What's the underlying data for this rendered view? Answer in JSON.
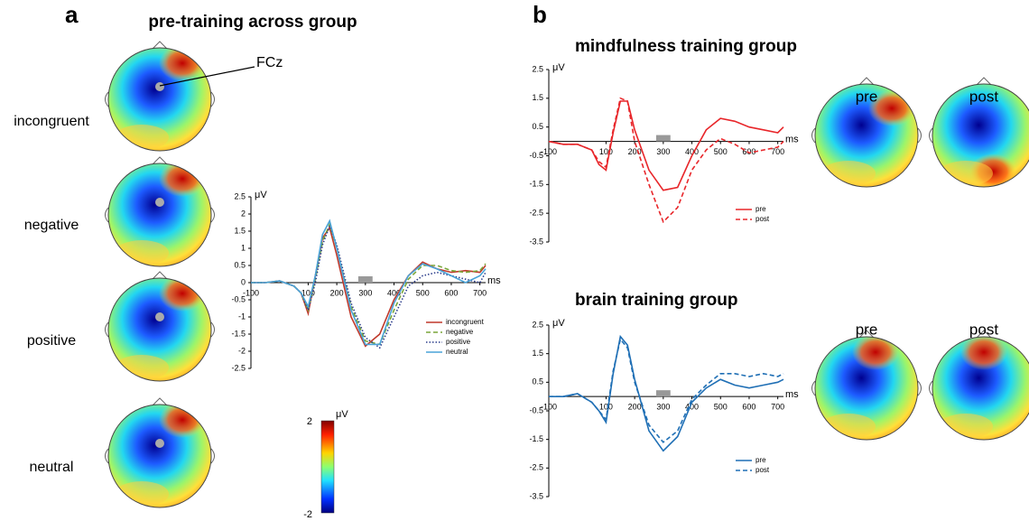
{
  "panel_labels": [
    "a",
    "b"
  ],
  "panel_a": {
    "title": "pre-training across group",
    "rows": [
      "incongruent",
      "negative",
      "positive",
      "neutral"
    ],
    "electrode": "FCz"
  },
  "colorbar": {
    "unit": "μV",
    "ticks": [
      2,
      -2
    ]
  },
  "chart_data": [
    {
      "type": "line",
      "x_label": "ms",
      "y_label": "μV",
      "x": [
        -100,
        -50,
        0,
        50,
        75,
        100,
        125,
        150,
        175,
        200,
        250,
        300,
        350,
        400,
        450,
        500,
        550,
        600,
        650,
        700,
        720
      ],
      "xlim": [
        -100,
        720
      ],
      "xticks": [
        -100,
        100,
        200,
        300,
        400,
        500,
        600,
        700
      ],
      "ylim": [
        -2.5,
        2.5
      ],
      "yticks": [
        2.5,
        2,
        1.5,
        1,
        0.5,
        0,
        -0.5,
        -1,
        -1.5,
        -2,
        -2.5
      ],
      "highlight_window": [
        275,
        325
      ],
      "series": [
        {
          "name": "incongruent",
          "color": "#c0392b",
          "dash": "solid",
          "values": [
            0,
            0,
            0.05,
            -0.1,
            -0.3,
            -0.9,
            0.2,
            1.3,
            1.6,
            0.8,
            -1.0,
            -1.85,
            -1.5,
            -0.5,
            0.2,
            0.6,
            0.4,
            0.3,
            0.35,
            0.3,
            0.5
          ]
        },
        {
          "name": "negative",
          "color": "#7aa63a",
          "dash": "dashed",
          "values": [
            0,
            0,
            0.05,
            -0.1,
            -0.3,
            -0.8,
            0.1,
            1.2,
            1.7,
            1.0,
            -0.7,
            -1.7,
            -1.8,
            -0.8,
            0.1,
            0.5,
            0.5,
            0.35,
            0.3,
            0.35,
            0.55
          ]
        },
        {
          "name": "positive",
          "color": "#2c3e8c",
          "dash": "dotted",
          "values": [
            0,
            0,
            0.05,
            -0.1,
            -0.3,
            -0.8,
            0,
            1.1,
            1.65,
            1.1,
            -0.6,
            -1.6,
            -1.9,
            -1.0,
            -0.1,
            0.2,
            0.3,
            0.2,
            0.1,
            0,
            0.3
          ]
        },
        {
          "name": "neutral",
          "color": "#4aa3d8",
          "dash": "solid",
          "values": [
            0,
            0,
            0.05,
            -0.1,
            -0.3,
            -0.7,
            0.2,
            1.4,
            1.8,
            1.0,
            -0.8,
            -1.8,
            -1.8,
            -0.6,
            0.2,
            0.55,
            0.4,
            0.2,
            0,
            0.2,
            0.4
          ]
        }
      ]
    },
    {
      "type": "line",
      "title": "mindfulness training group",
      "x_label": "ms",
      "y_label": "μV",
      "topomap_labels": [
        "pre",
        "post"
      ],
      "x": [
        -100,
        -50,
        0,
        50,
        75,
        100,
        125,
        150,
        175,
        200,
        250,
        300,
        350,
        400,
        450,
        500,
        550,
        600,
        650,
        700,
        720
      ],
      "xlim": [
        -100,
        720
      ],
      "xticks": [
        -100,
        100,
        200,
        300,
        400,
        500,
        600,
        700
      ],
      "ylim": [
        -3.5,
        2.5
      ],
      "yticks": [
        2.5,
        1.5,
        0.5,
        -0.5,
        -1.5,
        -2.5,
        -3.5
      ],
      "highlight_window": [
        275,
        325
      ],
      "series": [
        {
          "name": "pre",
          "color": "#e8262a",
          "dash": "solid",
          "values": [
            0,
            -0.1,
            -0.1,
            -0.3,
            -0.8,
            -1.0,
            0.3,
            1.4,
            1.4,
            0.4,
            -1.0,
            -1.7,
            -1.6,
            -0.5,
            0.4,
            0.8,
            0.7,
            0.5,
            0.4,
            0.3,
            0.5
          ]
        },
        {
          "name": "post",
          "color": "#e8262a",
          "dash": "dashed",
          "values": [
            0,
            -0.1,
            -0.1,
            -0.3,
            -0.7,
            -0.9,
            0.4,
            1.5,
            1.4,
            0,
            -1.5,
            -2.8,
            -2.3,
            -1.0,
            -0.3,
            0.1,
            -0.1,
            -0.4,
            -0.3,
            -0.2,
            0
          ]
        }
      ]
    },
    {
      "type": "line",
      "title": "brain training group",
      "x_label": "ms",
      "y_label": "μV",
      "topomap_labels": [
        "pre",
        "post"
      ],
      "x": [
        -100,
        -50,
        0,
        50,
        75,
        100,
        125,
        150,
        175,
        200,
        250,
        300,
        350,
        400,
        450,
        500,
        550,
        600,
        650,
        700,
        720
      ],
      "xlim": [
        -100,
        720
      ],
      "xticks": [
        -100,
        100,
        200,
        300,
        400,
        500,
        600,
        700
      ],
      "ylim": [
        -3.5,
        2.5
      ],
      "yticks": [
        2.5,
        1.5,
        0.5,
        -0.5,
        -1.5,
        -2.5,
        -3.5
      ],
      "highlight_window": [
        275,
        325
      ],
      "series": [
        {
          "name": "pre",
          "color": "#1f6fb5",
          "dash": "solid",
          "values": [
            0,
            0,
            0.1,
            -0.2,
            -0.5,
            -0.9,
            0.8,
            2.1,
            1.8,
            0.6,
            -1.2,
            -1.9,
            -1.4,
            -0.2,
            0.3,
            0.6,
            0.4,
            0.3,
            0.4,
            0.5,
            0.6
          ]
        },
        {
          "name": "post",
          "color": "#1f6fb5",
          "dash": "dashed",
          "values": [
            0,
            0,
            0.1,
            -0.2,
            -0.5,
            -0.8,
            0.9,
            2.0,
            1.7,
            0.5,
            -1.0,
            -1.6,
            -1.2,
            -0.1,
            0.4,
            0.8,
            0.8,
            0.7,
            0.8,
            0.7,
            0.8
          ]
        }
      ]
    }
  ]
}
